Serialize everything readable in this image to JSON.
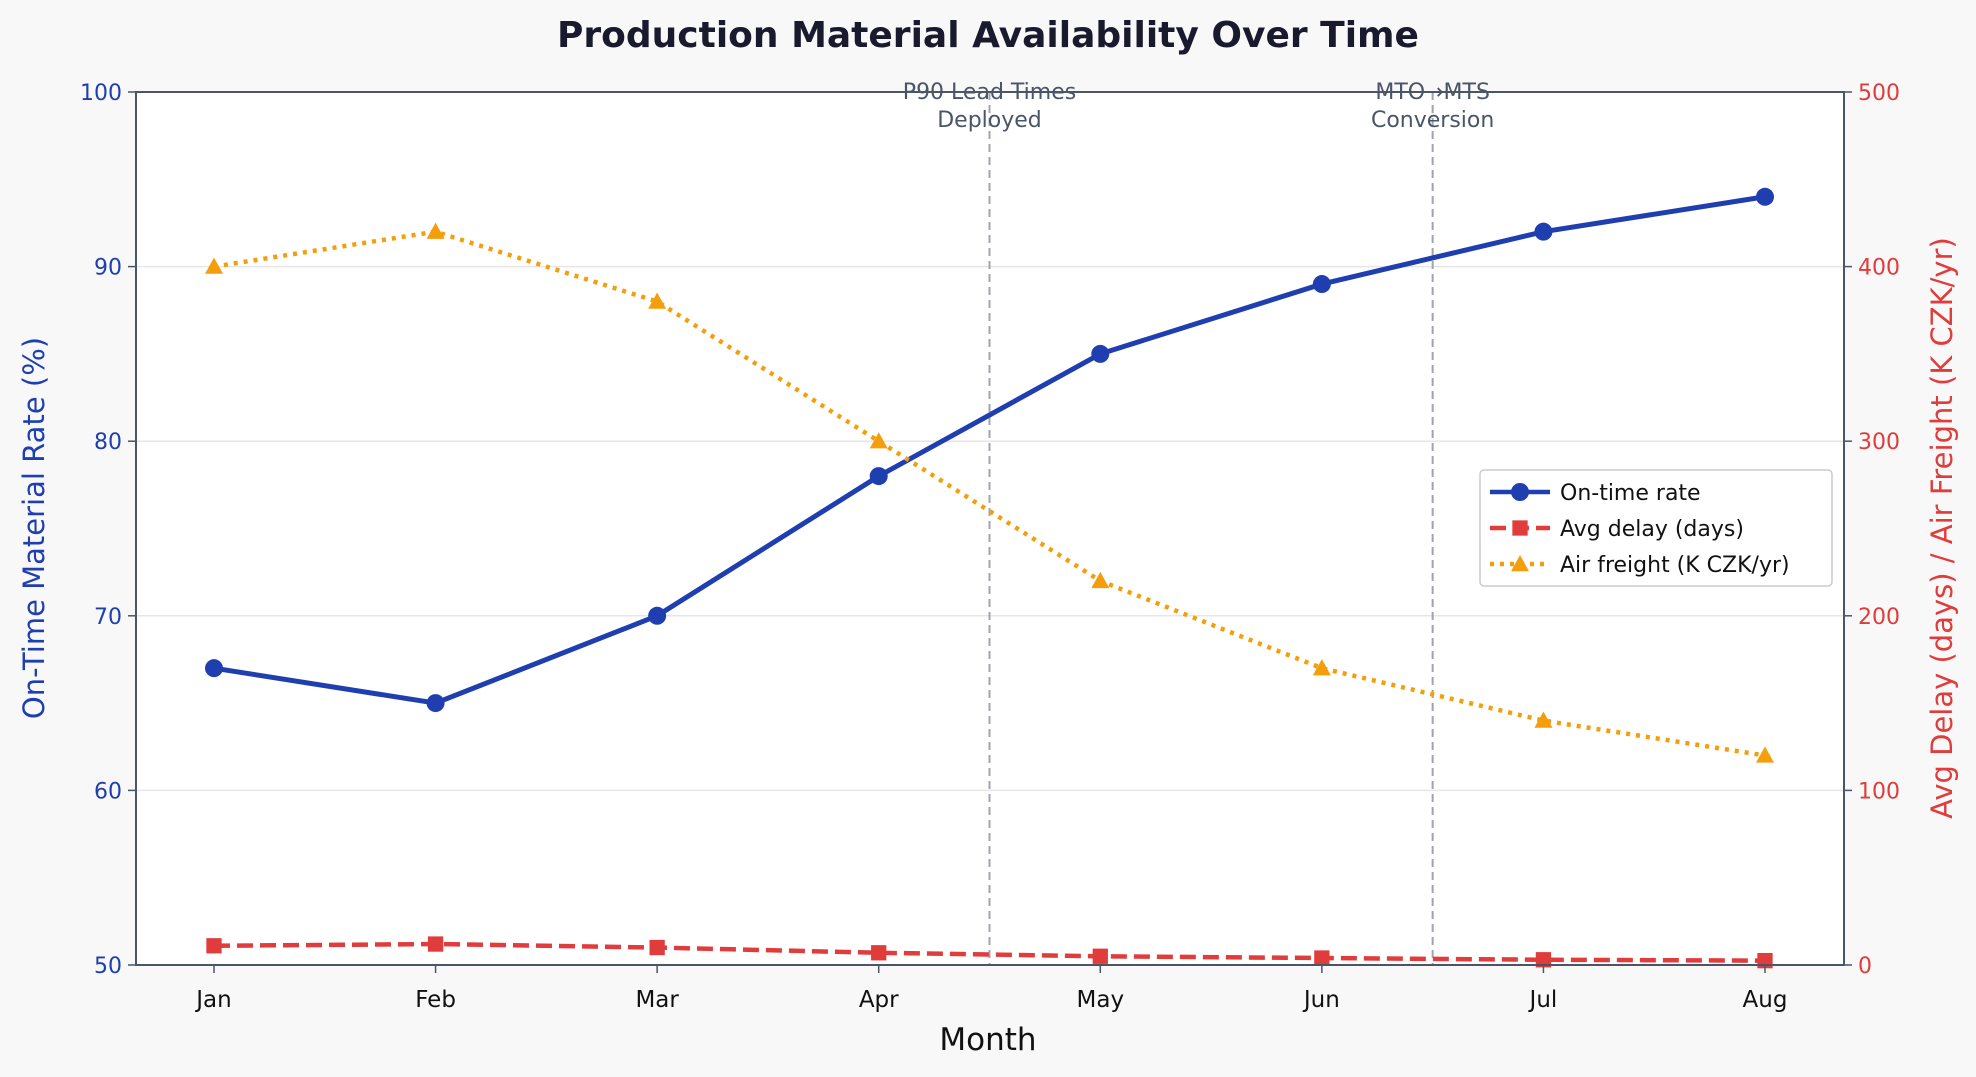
{
  "chart_data": {
    "type": "line",
    "title": "Production Material Availability Over Time",
    "xlabel": "Month",
    "ylabel_left": "On-Time Material Rate (%)",
    "ylabel_right": "Avg Delay (days) / Air Freight (K CZK/yr)",
    "categories": [
      "Jan",
      "Feb",
      "Mar",
      "Apr",
      "May",
      "Jun",
      "Jul",
      "Aug"
    ],
    "ylim_left": [
      50,
      100
    ],
    "yticks_left": [
      50,
      60,
      70,
      80,
      90,
      100
    ],
    "ylim_right": [
      0,
      500
    ],
    "yticks_right": [
      0,
      100,
      200,
      300,
      400,
      500
    ],
    "grid": "horizontal",
    "legend_position": "center-right",
    "series": [
      {
        "name": "On-time rate",
        "axis": "left",
        "color": "#1f3fb0",
        "style": "solid",
        "marker": "circle",
        "values": [
          67,
          65,
          70,
          78,
          85,
          89,
          92,
          94
        ]
      },
      {
        "name": "Avg delay (days)",
        "axis": "right",
        "color": "#e03c3c",
        "style": "dashed",
        "marker": "square",
        "values": [
          11,
          12,
          10,
          7,
          5,
          4,
          3,
          2.5
        ]
      },
      {
        "name": "Air freight (K CZK/yr)",
        "axis": "right",
        "color": "#f59e0b",
        "style": "dotted",
        "marker": "triangle",
        "values": [
          400,
          420,
          380,
          300,
          220,
          170,
          140,
          120
        ]
      }
    ],
    "annotations": [
      {
        "x": 3.5,
        "lines": [
          "P90 Lead Times",
          "Deployed"
        ]
      },
      {
        "x": 5.5,
        "lines": [
          "MTO→MTS",
          "Conversion"
        ]
      }
    ],
    "colors": {
      "left_axis": "#1f3fb0",
      "right_axis": "#e03c3c",
      "annotation": "#4a5568"
    }
  }
}
